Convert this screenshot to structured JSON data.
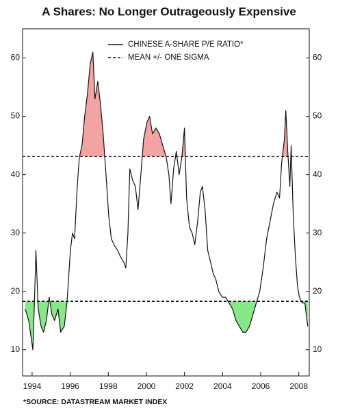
{
  "chart_data": {
    "type": "line",
    "title": "A Shares: No Longer Outrageously Expensive",
    "footnote": "*SOURCE: DATASTREAM MARKET INDEX",
    "xlim": [
      1993.5,
      2008.55
    ],
    "xticks": [
      1994,
      1996,
      1998,
      2000,
      2002,
      2004,
      2006,
      2008
    ],
    "ylim": [
      5.5,
      65
    ],
    "yticks": [
      10,
      20,
      30,
      40,
      50,
      60
    ],
    "grid": false,
    "legend": "top",
    "series": [
      {
        "name": "CHINESE A-SHARE P/E RATIO*",
        "color": "#111111",
        "x": [
          1993.64,
          1993.82,
          1994.04,
          1994.14,
          1994.2,
          1994.32,
          1994.47,
          1994.6,
          1994.75,
          1994.9,
          1995.04,
          1995.18,
          1995.36,
          1995.5,
          1995.69,
          1995.83,
          1996.01,
          1996.12,
          1996.23,
          1996.37,
          1996.48,
          1996.62,
          1996.76,
          1996.91,
          1997.05,
          1997.19,
          1997.3,
          1997.45,
          1997.59,
          1997.73,
          1997.88,
          1998.02,
          1998.16,
          1998.3,
          1998.49,
          1998.63,
          1998.81,
          1998.92,
          1999.03,
          1999.13,
          1999.28,
          1999.42,
          1999.56,
          1999.71,
          1999.85,
          2000.03,
          2000.17,
          2000.32,
          2000.5,
          2000.68,
          2000.86,
          2001.04,
          2001.18,
          2001.29,
          2001.43,
          2001.57,
          2001.72,
          2001.86,
          2002.0,
          2002.11,
          2002.26,
          2002.4,
          2002.54,
          2002.69,
          2002.83,
          2002.94,
          2003.08,
          2003.22,
          2003.37,
          2003.51,
          2003.65,
          2003.8,
          2003.98,
          2004.16,
          2004.34,
          2004.52,
          2004.7,
          2004.88,
          2005.06,
          2005.23,
          2005.41,
          2005.59,
          2005.77,
          2005.95,
          2006.13,
          2006.31,
          2006.49,
          2006.67,
          2006.85,
          2006.99,
          2007.1,
          2007.24,
          2007.32,
          2007.42,
          2007.53,
          2007.6,
          2007.71,
          2007.82,
          2007.93,
          2008.03,
          2008.18,
          2008.32,
          2008.47
        ],
        "values": [
          17,
          15,
          10,
          20,
          27,
          17,
          14,
          13,
          15,
          19,
          16,
          15,
          17,
          13,
          14,
          18,
          27,
          30,
          29,
          38,
          43,
          45,
          50,
          54,
          59,
          61,
          53,
          56,
          52,
          47,
          40,
          33,
          29,
          28,
          27,
          26,
          25,
          24,
          30,
          41,
          39,
          38,
          34,
          40,
          46,
          49,
          50,
          47,
          48,
          47,
          45,
          43,
          40,
          35,
          41,
          44,
          40,
          43,
          48,
          36,
          31,
          30,
          28,
          32,
          37,
          38,
          34,
          27,
          25,
          23,
          22,
          20,
          19,
          19,
          18,
          17,
          15,
          14,
          13,
          13,
          14,
          16,
          18,
          20,
          24,
          29,
          32,
          35,
          37,
          36,
          42,
          46,
          51,
          44,
          38,
          45,
          33,
          26,
          21,
          19,
          18,
          18,
          14
        ]
      }
    ],
    "reference_lines": {
      "name": "MEAN +/- ONE SIGMA",
      "color": "#111111",
      "values": [
        43.1,
        18.3
      ],
      "above_color": "#f4a3a3",
      "below_color": "#86e886"
    }
  }
}
